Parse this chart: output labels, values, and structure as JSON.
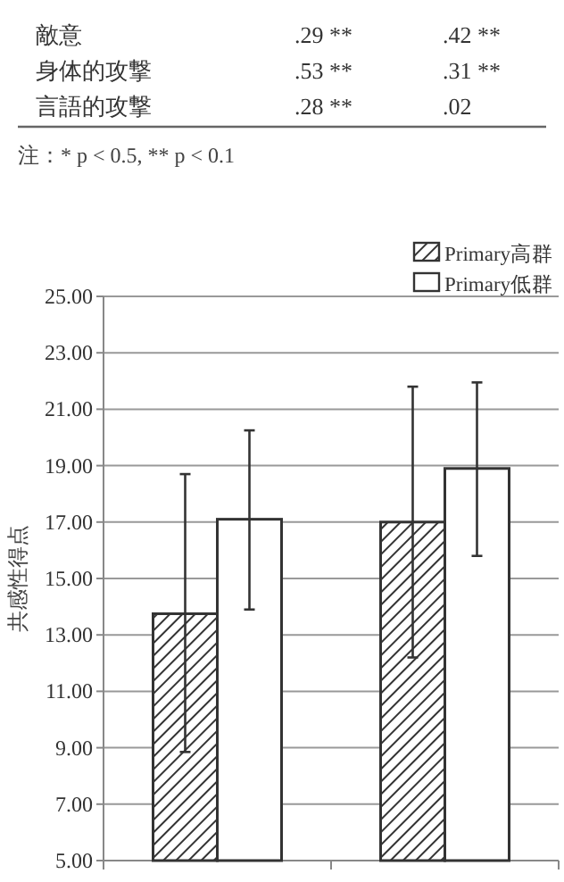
{
  "chart_data": {
    "type": "bar",
    "ylabel": "共感性得点",
    "categories": [
      null,
      null
    ],
    "series": [
      {
        "name": "Primary高群",
        "color": "#333333",
        "values": [
          13.75,
          17.0
        ],
        "errors": [
          [
            8.85,
            18.7
          ],
          [
            12.2,
            21.8
          ]
        ]
      },
      {
        "name": "Primary低群",
        "color": "#ffffff",
        "values": [
          17.1,
          18.9
        ],
        "errors": [
          [
            13.9,
            20.25
          ],
          [
            15.8,
            21.95
          ]
        ]
      }
    ],
    "ylim": [
      5,
      25
    ],
    "yticks": [
      {
        "value": 5,
        "label": "5.00"
      },
      {
        "value": 7,
        "label": "7.00"
      },
      {
        "value": 9,
        "label": "9.00"
      },
      {
        "value": 11,
        "label": "11.00"
      },
      {
        "value": 13,
        "label": "13.00"
      },
      {
        "value": 15,
        "label": "15.00"
      },
      {
        "value": 17,
        "label": "17.00"
      },
      {
        "value": 19,
        "label": "19.00"
      },
      {
        "value": 21,
        "label": "21.00"
      },
      {
        "value": 23,
        "label": "23.00"
      },
      {
        "value": 25,
        "label": "25.00"
      }
    ],
    "grid": "y",
    "legend": "top right",
    "annotations": [
      "敵意",
      ".29 **",
      ".42 **",
      "身体的攻撃",
      ".53 **",
      ".31 **",
      "言語的攻撃",
      ".28 **",
      ".02",
      "注：* p < 0.5, ** p < 0.1"
    ]
  }
}
